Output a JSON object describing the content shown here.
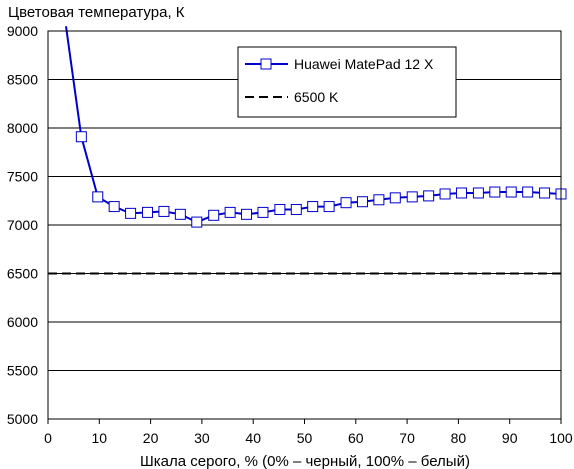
{
  "chart_data": {
    "type": "line",
    "ylabel": "Цветовая температура, К",
    "xlabel": "Шкала серого, % (0% – черный, 100% – белый)",
    "xlim": [
      0,
      100
    ],
    "ylim": [
      5000,
      9000
    ],
    "x_ticks": [
      0,
      10,
      20,
      30,
      40,
      50,
      60,
      70,
      80,
      90,
      100
    ],
    "y_ticks": [
      5000,
      5500,
      6000,
      6500,
      7000,
      7500,
      8000,
      8500,
      9000
    ],
    "grid": "horizontal",
    "legend_position": "top-right",
    "series": [
      {
        "name": "Huawei MatePad 12 X",
        "color": "#0000cc",
        "marker": "square",
        "line_start": {
          "x": 3.5,
          "y": 9050
        },
        "x": [
          6.5,
          9.7,
          12.9,
          16.1,
          19.4,
          22.6,
          25.8,
          29.0,
          32.3,
          35.5,
          38.7,
          41.9,
          45.2,
          48.4,
          51.6,
          54.8,
          58.1,
          61.3,
          64.5,
          67.7,
          71.0,
          74.2,
          77.4,
          80.6,
          83.9,
          87.1,
          90.3,
          93.5,
          96.8,
          100.0
        ],
        "y": [
          7910,
          7290,
          7190,
          7120,
          7130,
          7140,
          7110,
          7030,
          7100,
          7130,
          7110,
          7130,
          7160,
          7160,
          7190,
          7190,
          7230,
          7240,
          7260,
          7280,
          7290,
          7300,
          7320,
          7330,
          7330,
          7340,
          7340,
          7340,
          7330,
          7320
        ]
      },
      {
        "name": "6500 K",
        "color": "#000000",
        "style": "dashed",
        "value": 6500
      }
    ]
  }
}
